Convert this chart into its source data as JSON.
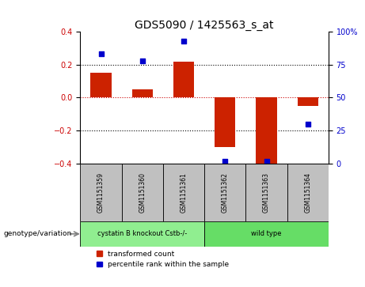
{
  "title": "GDS5090 / 1425563_s_at",
  "samples": [
    "GSM1151359",
    "GSM1151360",
    "GSM1151361",
    "GSM1151362",
    "GSM1151363",
    "GSM1151364"
  ],
  "transformed_count": [
    0.15,
    0.05,
    0.22,
    -0.3,
    -0.41,
    -0.05
  ],
  "percentile_rank": [
    83,
    78,
    93,
    2,
    2,
    30
  ],
  "ylim_left": [
    -0.4,
    0.4
  ],
  "ylim_right": [
    0,
    100
  ],
  "yticks_left": [
    -0.4,
    -0.2,
    0.0,
    0.2,
    0.4
  ],
  "yticks_right": [
    0,
    25,
    50,
    75,
    100
  ],
  "ytick_labels_right": [
    "0",
    "25",
    "50",
    "75",
    "100%"
  ],
  "bar_color": "#cc2200",
  "dot_color": "#0000cc",
  "groups": [
    {
      "label": "cystatin B knockout Cstb-/-",
      "indices": [
        0,
        1,
        2
      ],
      "color": "#90EE90"
    },
    {
      "label": "wild type",
      "indices": [
        3,
        4,
        5
      ],
      "color": "#66dd66"
    }
  ],
  "group_row_label": "genotype/variation",
  "legend_bar_label": "transformed count",
  "legend_dot_label": "percentile rank within the sample",
  "zero_line_color": "#cc0000",
  "dotted_grid_values": [
    -0.2,
    0.2
  ],
  "sample_box_color": "#c0c0c0",
  "bar_width": 0.5
}
